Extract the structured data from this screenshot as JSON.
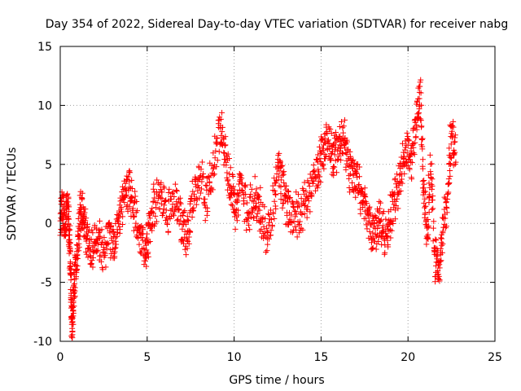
{
  "chart_data": {
    "type": "scatter",
    "title": "Day 354 of 2022, Sidereal Day-to-day VTEC variation (SDTVAR) for receiver nabg",
    "xlabel": "GPS time / hours",
    "ylabel": "SDTVAR / TECUs",
    "xlim": [
      0,
      25
    ],
    "ylim": [
      -10,
      15
    ],
    "xticks": [
      0,
      5,
      10,
      15,
      20,
      25
    ],
    "xtick_labels": [
      "0",
      "5",
      "10",
      "15",
      "20",
      "25"
    ],
    "yticks": [
      -10,
      -5,
      0,
      5,
      10,
      15
    ],
    "ytick_labels": [
      "-10",
      "-5",
      "0",
      "5",
      "10",
      "15"
    ],
    "grid": true,
    "marker": "+",
    "color": "#ff0000",
    "series": [
      {
        "name": "SDTVAR",
        "trend": [
          [
            0.0,
            0.5
          ],
          [
            0.15,
            1.2
          ],
          [
            0.3,
            0.2
          ],
          [
            0.45,
            1.5
          ],
          [
            0.55,
            -2.0
          ],
          [
            0.62,
            -5.5
          ],
          [
            0.68,
            -9.0
          ],
          [
            0.75,
            -7.0
          ],
          [
            0.85,
            -4.0
          ],
          [
            1.0,
            -2.0
          ],
          [
            1.15,
            0.8
          ],
          [
            1.3,
            1.2
          ],
          [
            1.5,
            -1.2
          ],
          [
            1.8,
            -2.0
          ],
          [
            2.1,
            -1.0
          ],
          [
            2.4,
            -2.5
          ],
          [
            2.8,
            -1.5
          ],
          [
            3.1,
            -2.0
          ],
          [
            3.4,
            0.5
          ],
          [
            3.7,
            2.5
          ],
          [
            4.0,
            3.0
          ],
          [
            4.3,
            1.0
          ],
          [
            4.6,
            -1.0
          ],
          [
            4.9,
            -2.5
          ],
          [
            5.1,
            -1.0
          ],
          [
            5.4,
            1.5
          ],
          [
            5.8,
            2.5
          ],
          [
            6.2,
            1.0
          ],
          [
            6.6,
            2.0
          ],
          [
            7.0,
            0.0
          ],
          [
            7.3,
            -1.5
          ],
          [
            7.6,
            2.0
          ],
          [
            8.0,
            4.0
          ],
          [
            8.4,
            2.0
          ],
          [
            8.8,
            4.5
          ],
          [
            9.2,
            8.5
          ],
          [
            9.5,
            6.0
          ],
          [
            9.8,
            3.0
          ],
          [
            10.1,
            1.0
          ],
          [
            10.4,
            3.5
          ],
          [
            10.8,
            0.5
          ],
          [
            11.2,
            2.5
          ],
          [
            11.5,
            1.0
          ],
          [
            11.9,
            -1.5
          ],
          [
            12.3,
            2.0
          ],
          [
            12.6,
            5.0
          ],
          [
            12.9,
            2.0
          ],
          [
            13.2,
            1.0
          ],
          [
            13.6,
            0.5
          ],
          [
            14.0,
            1.5
          ],
          [
            14.4,
            2.5
          ],
          [
            14.8,
            4.5
          ],
          [
            15.1,
            6.0
          ],
          [
            15.4,
            7.0
          ],
          [
            15.7,
            5.5
          ],
          [
            16.0,
            6.5
          ],
          [
            16.3,
            7.5
          ],
          [
            16.6,
            5.0
          ],
          [
            16.9,
            4.0
          ],
          [
            17.2,
            3.0
          ],
          [
            17.5,
            1.5
          ],
          [
            17.8,
            -0.5
          ],
          [
            18.1,
            -1.0
          ],
          [
            18.4,
            0.0
          ],
          [
            18.7,
            -1.5
          ],
          [
            19.0,
            1.0
          ],
          [
            19.3,
            2.0
          ],
          [
            19.6,
            4.0
          ],
          [
            19.9,
            6.5
          ],
          [
            20.2,
            5.0
          ],
          [
            20.5,
            9.0
          ],
          [
            20.7,
            11.0
          ],
          [
            20.9,
            3.0
          ],
          [
            21.1,
            -1.0
          ],
          [
            21.3,
            5.0
          ],
          [
            21.55,
            -3.0
          ],
          [
            21.75,
            -4.0
          ],
          [
            22.0,
            -1.0
          ],
          [
            22.3,
            3.0
          ],
          [
            22.5,
            7.5
          ],
          [
            22.75,
            6.0
          ]
        ]
      }
    ]
  }
}
